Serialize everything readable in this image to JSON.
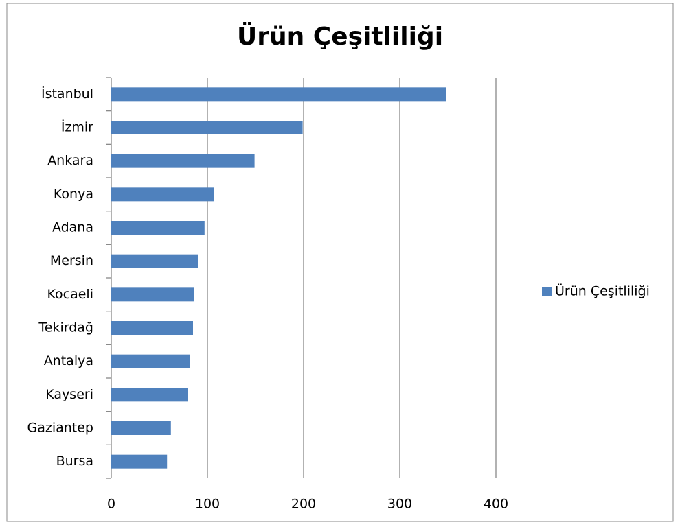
{
  "chart_data": {
    "type": "bar",
    "orientation": "horizontal",
    "title": "Ürün Çeşitliliği",
    "categories": [
      "İstanbul",
      "İzmir",
      "Ankara",
      "Konya",
      "Adana",
      "Mersin",
      "Kocaeli",
      "Tekirdağ",
      "Antalya",
      "Kayseri",
      "Gaziantep",
      "Bursa"
    ],
    "series": [
      {
        "name": "Ürün Çeşitliliği",
        "color": "#4f81bd",
        "values": [
          348,
          199,
          149,
          107,
          97,
          90,
          86,
          85,
          82,
          80,
          62,
          58
        ]
      }
    ],
    "xlim": [
      0,
      400
    ],
    "xticks": [
      0,
      100,
      200,
      300,
      400
    ],
    "grid": true,
    "legend": "right"
  }
}
